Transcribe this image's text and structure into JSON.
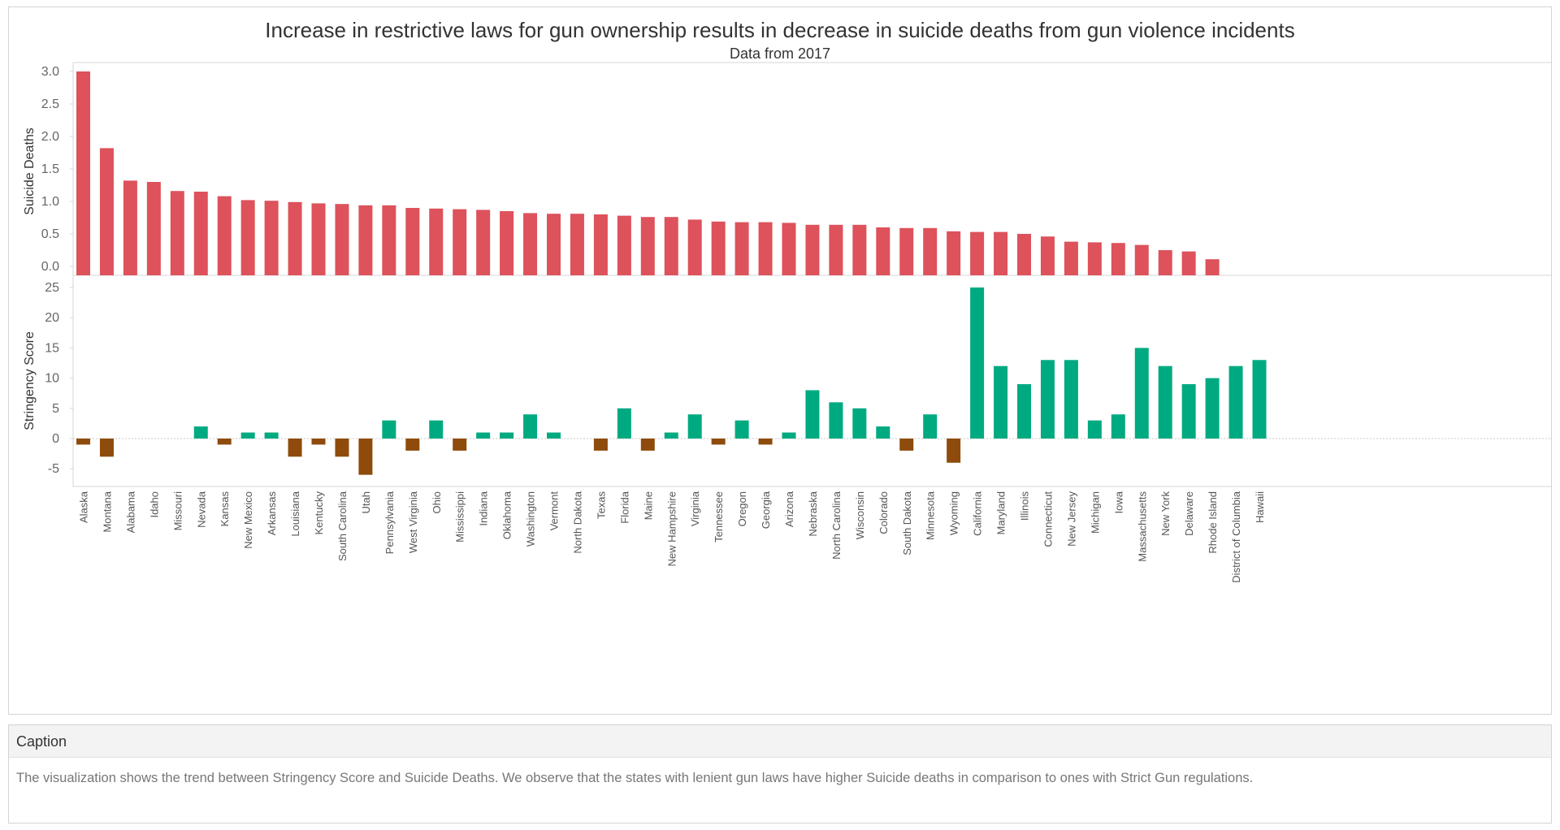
{
  "chart_data": {
    "type": "bar",
    "title": "Increase in restrictive laws for gun ownership results in decrease in suicide deaths from gun violence incidents",
    "subtitle": "Data from 2017",
    "categories": [
      "Alaska",
      "Montana",
      "Alabama",
      "Idaho",
      "Missouri",
      "Nevada",
      "Kansas",
      "New Mexico",
      "Arkansas",
      "Louisiana",
      "Kentucky",
      "South Carolina",
      "Utah",
      "Pennsylvania",
      "West Virginia",
      "Ohio",
      "Mississippi",
      "Indiana",
      "Oklahoma",
      "Washington",
      "Vermont",
      "North Dakota",
      "Texas",
      "Florida",
      "Maine",
      "New Hampshire",
      "Virginia",
      "Tennessee",
      "Oregon",
      "Georgia",
      "Arizona",
      "Nebraska",
      "North Carolina",
      "Wisconsin",
      "Colorado",
      "South Dakota",
      "Minnesota",
      "Wyoming",
      "California",
      "Maryland",
      "Illinois",
      "Connecticut",
      "New Jersey",
      "Michigan",
      "Iowa",
      "Massachusetts",
      "New York",
      "Delaware",
      "Rhode Island",
      "District of Columbia",
      "Hawaii"
    ],
    "series": [
      {
        "name": "Suicide Deaths",
        "values": [
          3.0,
          1.82,
          1.32,
          1.3,
          1.16,
          1.15,
          1.08,
          1.02,
          1.01,
          0.99,
          0.97,
          0.96,
          0.94,
          0.94,
          0.9,
          0.89,
          0.88,
          0.87,
          0.85,
          0.82,
          0.81,
          0.81,
          0.8,
          0.78,
          0.76,
          0.76,
          0.72,
          0.69,
          0.68,
          0.68,
          0.67,
          0.64,
          0.64,
          0.64,
          0.6,
          0.59,
          0.59,
          0.54,
          0.53,
          0.53,
          0.5,
          0.46,
          0.38,
          0.37,
          0.36,
          0.33,
          0.25,
          0.23,
          0.11,
          null,
          null
        ],
        "color": "#dd525b"
      },
      {
        "name": "Stringency Score",
        "values": [
          -1,
          -3,
          0,
          0,
          0,
          2,
          -1,
          1,
          1,
          -3,
          -1,
          -3,
          -6,
          3,
          -2,
          3,
          -2,
          1,
          1,
          4,
          1,
          0,
          -2,
          5,
          -2,
          1,
          4,
          -1,
          3,
          -1,
          1,
          8,
          6,
          5,
          2,
          -2,
          4,
          -4,
          25,
          12,
          9,
          13,
          13,
          3,
          4,
          15,
          12,
          9,
          10,
          12,
          13
        ],
        "positive_color": "#00aa80",
        "negative_color": "#8e4b0b"
      }
    ],
    "panels": [
      {
        "ylabel": "Suicide Deaths",
        "yticks": [
          "3.0",
          "2.5",
          "2.0",
          "1.5",
          "1.0",
          "0.5",
          "0.0"
        ],
        "ylim": [
          0,
          3.1
        ]
      },
      {
        "ylabel": "Stringency Score",
        "yticks": [
          "25",
          "20",
          "15",
          "10",
          "5",
          "0",
          "-5"
        ],
        "ylim": [
          -8,
          27
        ]
      }
    ],
    "grid": false,
    "legend": "none"
  },
  "caption": {
    "heading": "Caption",
    "text": "The visualization shows the trend between Stringency Score and Suicide Deaths. We observe that the states with lenient gun laws have higher Suicide deaths in comparison to ones with Strict Gun regulations."
  }
}
